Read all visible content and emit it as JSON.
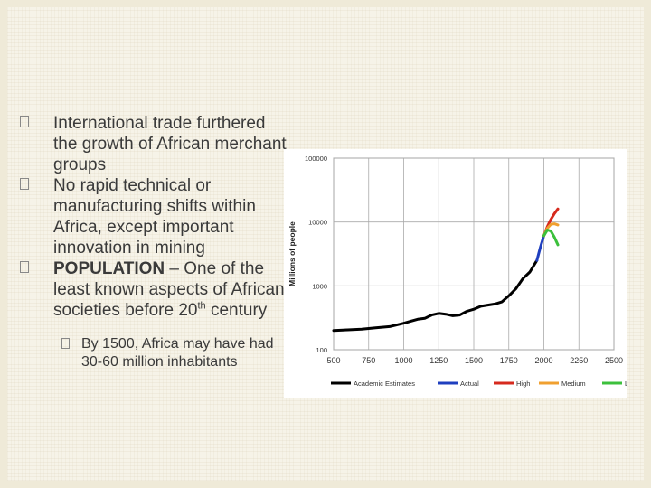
{
  "bullets": [
    {
      "text": "International trade furthered the growth of African merchant groups"
    },
    {
      "text": "No rapid technical or manufacturing shifts within Africa, except important innovation in mining"
    },
    {
      "bold": "POPULATION",
      "text_a": " – One of the least known aspects of African societies before 20",
      "sup": "th",
      "text_b": " century"
    }
  ],
  "sub_bullet": {
    "text": "By 1500, Africa may have had 30-60 million inhabitants"
  },
  "chart_data": {
    "type": "line",
    "ylabel": "Millions of people",
    "xlabel": "",
    "xlim": [
      500,
      2500
    ],
    "ylim": [
      100,
      100000
    ],
    "yscale": "log",
    "x_ticks": [
      "500",
      "750",
      "1000",
      "1250",
      "1500",
      "1750",
      "2000",
      "2250",
      "2500"
    ],
    "y_ticks": [
      {
        "value": 100,
        "label": "100"
      },
      {
        "value": 1000,
        "label": "1000"
      },
      {
        "value": 10000,
        "label": "10000"
      },
      {
        "value": 100000,
        "label": "100000"
      }
    ],
    "grid": true,
    "series": [
      {
        "name": "Academic Estimates",
        "color": "#000000",
        "x": [
          500,
          600,
          700,
          800,
          900,
          1000,
          1050,
          1100,
          1150,
          1200,
          1250,
          1300,
          1350,
          1400,
          1450,
          1500,
          1550,
          1600,
          1650,
          1700,
          1750,
          1800,
          1850,
          1900,
          1950
        ],
        "y": [
          200,
          205,
          210,
          220,
          230,
          260,
          280,
          300,
          310,
          350,
          370,
          360,
          340,
          350,
          400,
          430,
          480,
          500,
          520,
          560,
          700,
          900,
          1300,
          1650,
          2500
        ]
      },
      {
        "name": "Actual",
        "color": "#1f3fbf",
        "x": [
          1950,
          1975,
          2000
        ],
        "y": [
          2500,
          4000,
          6100
        ]
      },
      {
        "name": "High",
        "color": "#d62a1e",
        "x": [
          2000,
          2025,
          2050,
          2075,
          2100
        ],
        "y": [
          6100,
          8500,
          11000,
          13500,
          16000
        ]
      },
      {
        "name": "Medium",
        "color": "#f0a030",
        "x": [
          2000,
          2025,
          2050,
          2075,
          2100
        ],
        "y": [
          6100,
          8000,
          9200,
          9400,
          9000
        ]
      },
      {
        "name": "Low",
        "color": "#3cc03c",
        "x": [
          2000,
          2025,
          2050,
          2075,
          2100
        ],
        "y": [
          6100,
          7500,
          7200,
          5800,
          4400
        ]
      }
    ]
  }
}
